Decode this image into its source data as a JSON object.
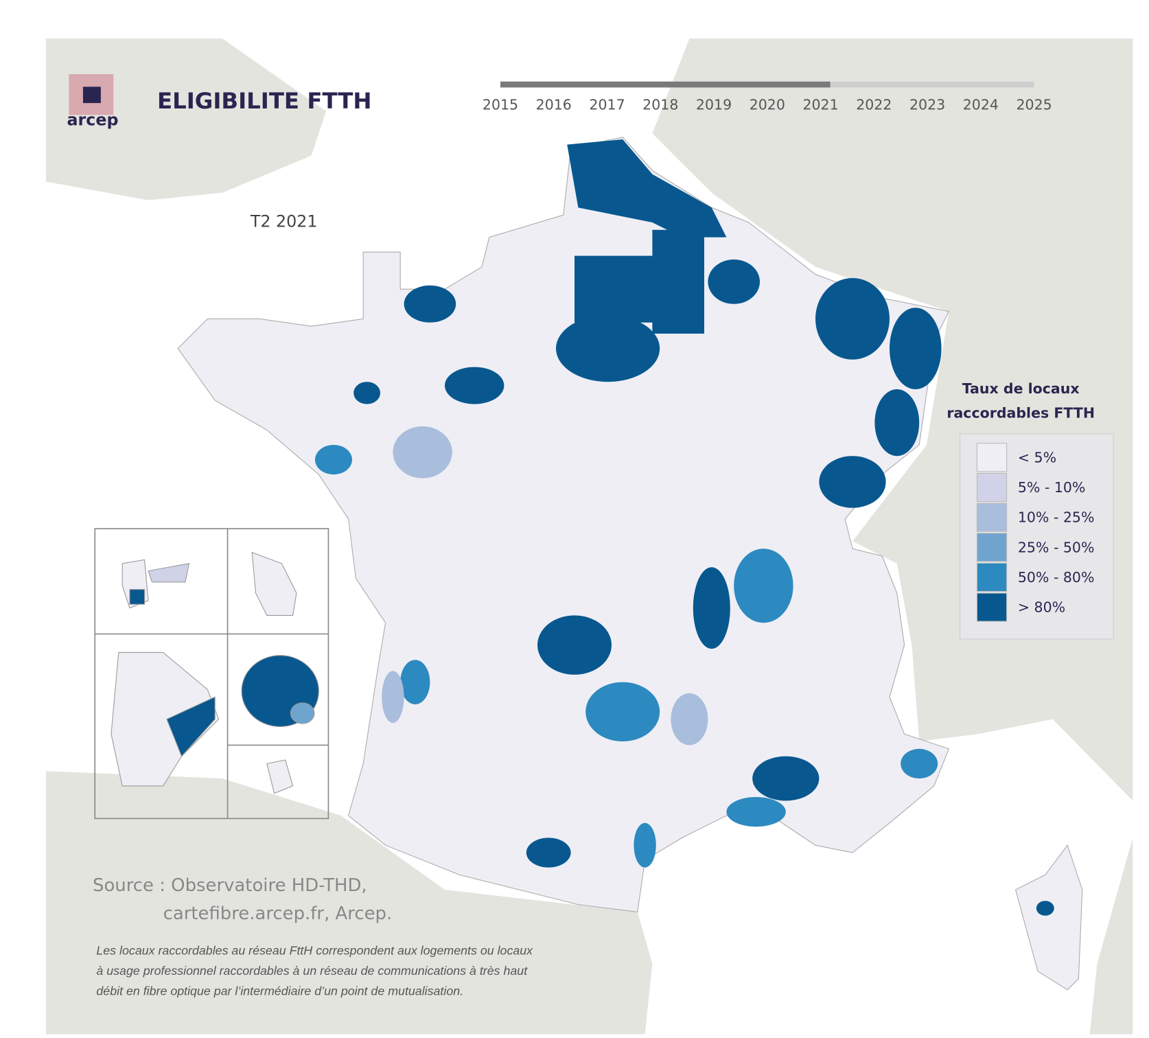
{
  "header": {
    "logo_text": "arcep",
    "title": "ELIGIBILITE FTTH"
  },
  "timeline": {
    "years": [
      "2015",
      "2016",
      "2017",
      "2018",
      "2019",
      "2020",
      "2021",
      "2022",
      "2023",
      "2024",
      "2025"
    ]
  },
  "period": "T2 2021",
  "legend": {
    "title_lines": [
      "Taux de locaux",
      "raccordables FTTH"
    ],
    "items": [
      {
        "label": "< 5%",
        "color": "#f0eff5"
      },
      {
        "label": "5% - 10%",
        "color": "#d0d2e8"
      },
      {
        "label": "10% - 25%",
        "color": "#a9bddc"
      },
      {
        "label": "25% - 50%",
        "color": "#6fa4cf"
      },
      {
        "label": "50% - 80%",
        "color": "#2c8ac0"
      },
      {
        "label": "> 80%",
        "color": "#08588f"
      }
    ]
  },
  "source": {
    "lines": [
      "Source : Observatoire HD-THD,",
      "cartefibre.arcep.fr, Arcep."
    ]
  },
  "note": {
    "lines": [
      "Les locaux raccordables au réseau FttH correspondent aux logements ou locaux",
      "à usage professionnel raccordables à un réseau de communications à très haut",
      "débit en fibre optique par l’intermédiaire d’un point de mutualisation."
    ]
  }
}
